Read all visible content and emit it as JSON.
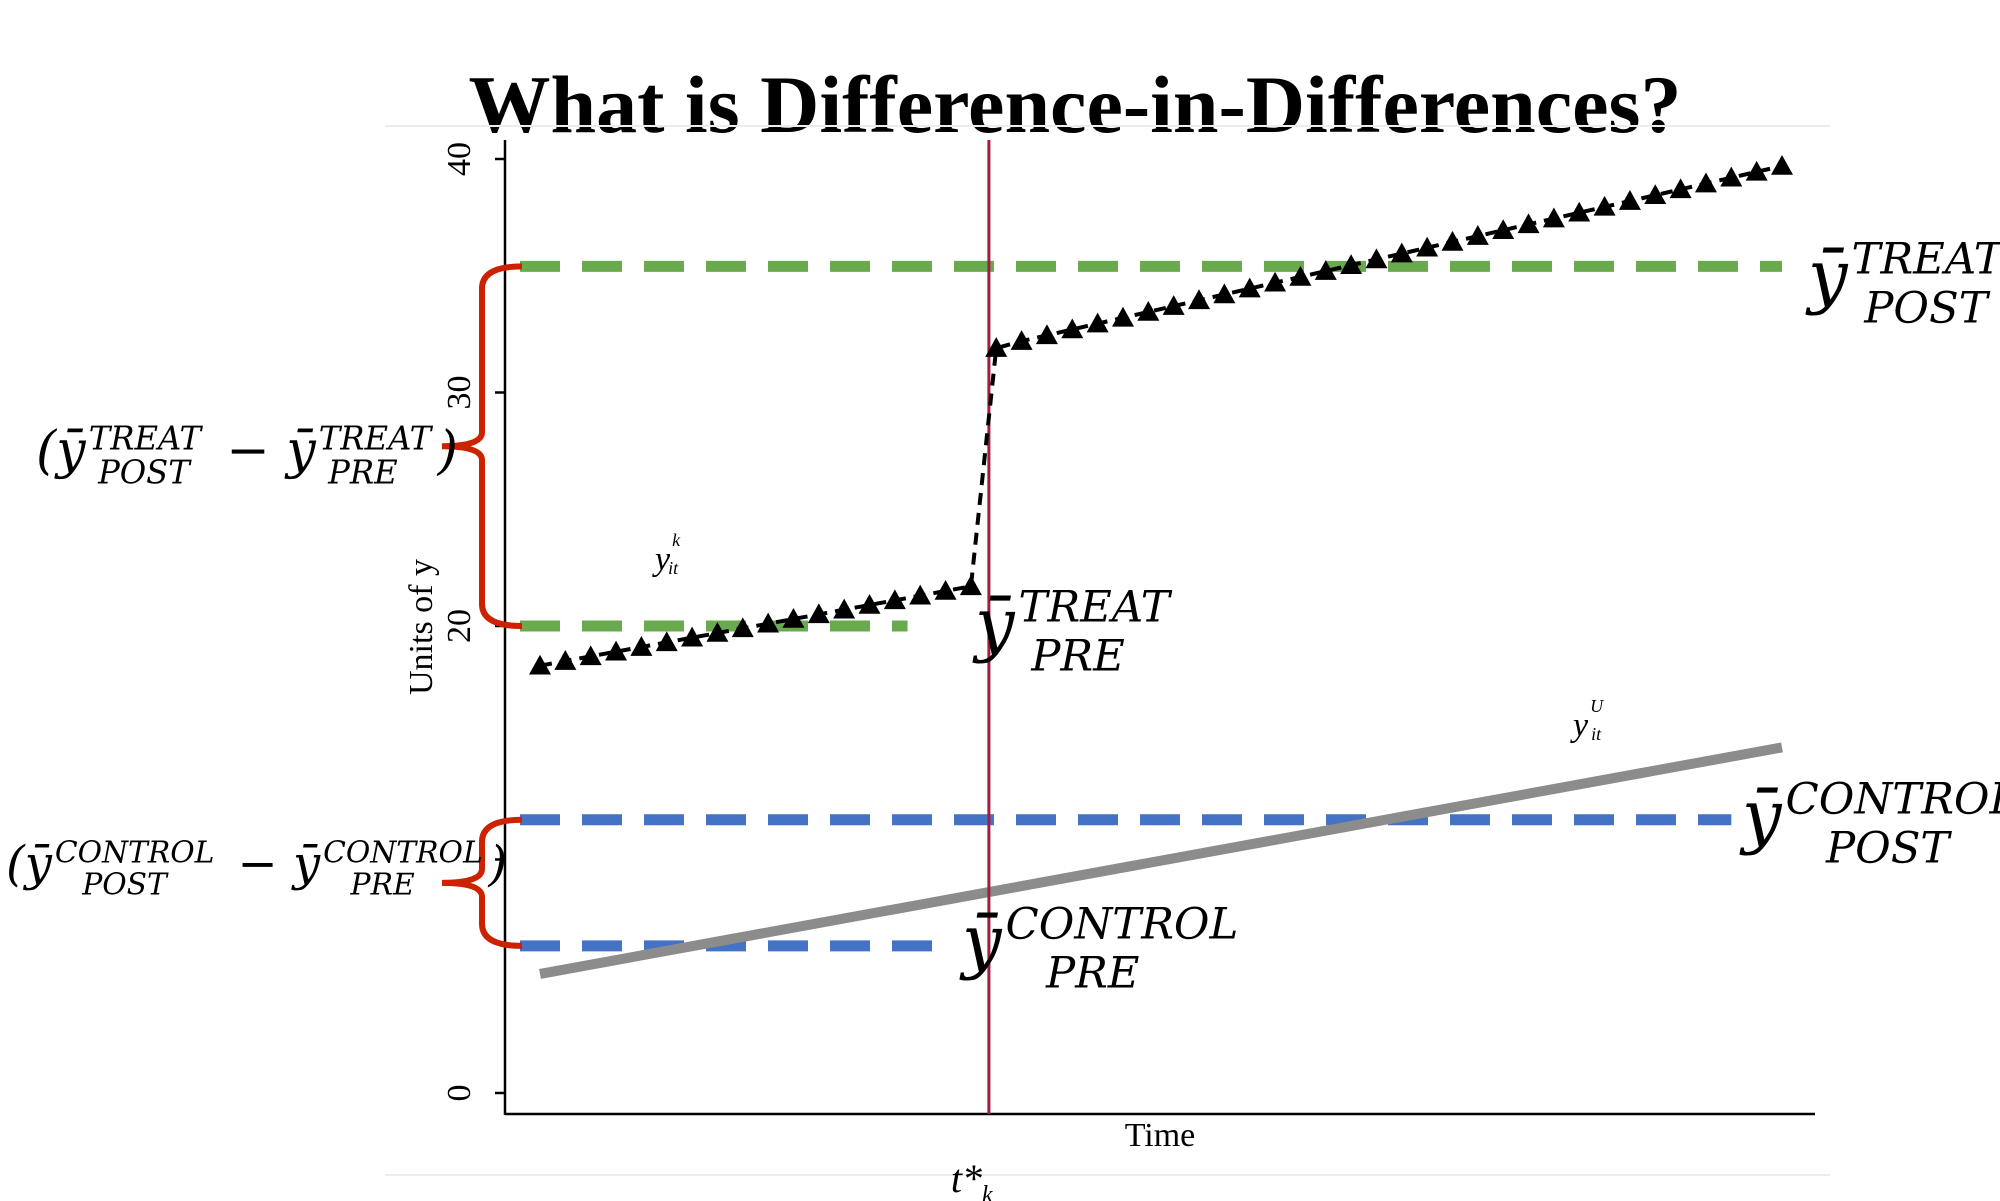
{
  "title": "What is Difference-in-Differences?",
  "chart_data": {
    "type": "line",
    "xlabel": "Time",
    "ylabel": "Units of y",
    "ylim": [
      0,
      41
    ],
    "yticks": [
      0,
      10,
      20,
      30,
      40
    ],
    "ytick_labels": [
      "0",
      "",
      "20",
      "30",
      "40"
    ],
    "x": [
      1,
      50
    ],
    "treatment_time": 18,
    "treatment_time_label": "t*",
    "treatment_time_label_sub": "k",
    "series": [
      {
        "label_main": "y",
        "label_sup": "k",
        "label_sub": "it",
        "color": "#000000",
        "marker": "triangle",
        "style": "dashed",
        "x": [
          1,
          2,
          3,
          4,
          5,
          6,
          7,
          8,
          9,
          10,
          11,
          12,
          13,
          14,
          15,
          16,
          17,
          18,
          19,
          20,
          21,
          22,
          23,
          24,
          25,
          26,
          27,
          28,
          29,
          30,
          31,
          32,
          33,
          34,
          35,
          36,
          37,
          38,
          39,
          40,
          41,
          42,
          43,
          44,
          45,
          46,
          47,
          48,
          49,
          50
        ],
        "values": [
          18.3,
          18.5,
          18.7,
          18.9,
          19.1,
          19.3,
          19.5,
          19.7,
          19.9,
          20.1,
          20.3,
          20.5,
          20.7,
          20.9,
          21.1,
          21.3,
          21.5,
          21.7,
          31.9,
          32.2,
          32.45,
          32.7,
          32.95,
          33.2,
          33.45,
          33.7,
          33.95,
          34.2,
          34.45,
          34.7,
          34.95,
          35.2,
          35.45,
          35.7,
          35.95,
          36.2,
          36.45,
          36.7,
          36.95,
          37.2,
          37.45,
          37.7,
          37.95,
          38.2,
          38.45,
          38.7,
          38.95,
          39.2,
          39.45,
          39.7
        ]
      },
      {
        "label_main": "y",
        "label_sup": "U",
        "label_sub": "it",
        "color": "#8c8c8c",
        "style": "solid",
        "x": [
          1,
          50
        ],
        "values": [
          5.1,
          14.8
        ]
      }
    ],
    "reference_lines": [
      {
        "label_main": "ȳ",
        "label_sup": "TREAT",
        "label_sub": "POST",
        "y": 35.4,
        "x_from": 1,
        "x_to": 50,
        "color": "#6aaa4f"
      },
      {
        "label_main": "ȳ",
        "label_sup": "TREAT",
        "label_sub": "PRE",
        "y": 20.0,
        "x_from": 1,
        "x_to": 15.5,
        "color": "#6aaa4f"
      },
      {
        "label_main": "ȳ",
        "label_sup": "CONTROL",
        "label_sub": "POST",
        "y": 11.7,
        "x_from": 1,
        "x_to": 48,
        "color": "#4472c4"
      },
      {
        "label_main": "ȳ",
        "label_sup": "CONTROL",
        "label_sub": "PRE",
        "y": 6.3,
        "x_from": 1,
        "x_to": 17,
        "color": "#4472c4"
      }
    ],
    "annotations": [
      {
        "text_main": "ȳ",
        "sup_a": "TREAT",
        "sub_a": "POST",
        "minus": "−",
        "sup_b": "TREAT",
        "sub_b": "PRE",
        "open": "(",
        "close": ")"
      },
      {
        "text_main": "ȳ",
        "sup_a": "CONTROL",
        "sub_a": "POST",
        "minus": "−",
        "sup_b": "CONTROL",
        "sub_b": "PRE",
        "open": "(",
        "close": ")"
      }
    ],
    "colors": {
      "treatment_line": "#a31c3f",
      "brace": "#cc2200"
    }
  }
}
